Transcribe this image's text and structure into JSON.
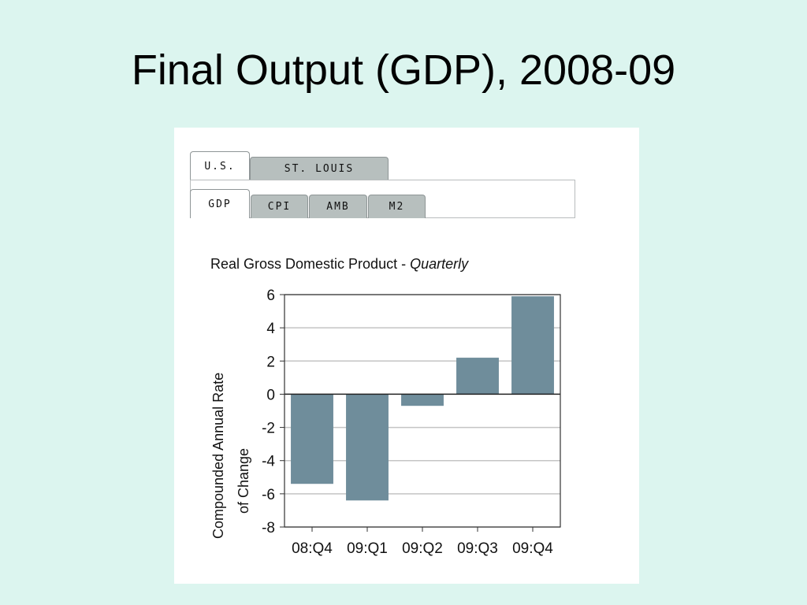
{
  "slide": {
    "title": "Final Output (GDP), 2008-09"
  },
  "tabs": {
    "region": [
      {
        "label": "U.S.",
        "active": true
      },
      {
        "label": "ST. LOUIS",
        "active": false
      }
    ],
    "series": [
      {
        "label": "GDP",
        "active": true
      },
      {
        "label": "CPI",
        "active": false
      },
      {
        "label": "AMB",
        "active": false
      },
      {
        "label": "M2",
        "active": false
      }
    ]
  },
  "colors": {
    "bar": "#6f8d9b",
    "grid": "#c4c4c4",
    "background": "#dcf5ef",
    "tab_inactive": "#b7bfbe"
  },
  "chart_data": {
    "type": "bar",
    "title": "Real Gross Domestic Product - ",
    "title_italic": "Quarterly",
    "ylabel_line1": "Compounded Annual Rate",
    "ylabel_line2": "of Change",
    "xlabel": "",
    "categories": [
      "08:Q4",
      "09:Q1",
      "09:Q2",
      "09:Q3",
      "09:Q4"
    ],
    "values": [
      -5.4,
      -6.4,
      -0.7,
      2.2,
      5.9
    ],
    "ylim": [
      -8,
      6
    ],
    "yticks": [
      6,
      4,
      2,
      0,
      -2,
      -4,
      -6,
      -8
    ],
    "grid": true
  }
}
